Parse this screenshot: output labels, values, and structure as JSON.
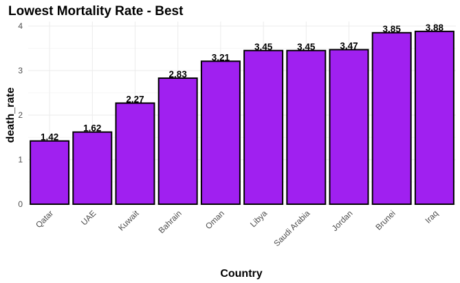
{
  "chart_data": {
    "type": "bar",
    "title": "Lowest Mortality Rate - Best",
    "xlabel": "Country",
    "ylabel": "death_rate",
    "categories": [
      "Qatar",
      "UAE",
      "Kuwait",
      "Bahrain",
      "Oman",
      "Libya",
      "Saudi Arabia",
      "Jordan",
      "Brunei",
      "Iraq"
    ],
    "values": [
      1.42,
      1.62,
      2.27,
      2.83,
      3.21,
      3.45,
      3.45,
      3.47,
      3.85,
      3.88
    ],
    "data_labels": [
      "1.42",
      "1.62",
      "2.27",
      "2.83",
      "3.21",
      "3.45",
      "3.45",
      "3.47",
      "3.85",
      "3.88"
    ],
    "yticks": [
      0,
      1,
      2,
      3,
      4
    ],
    "ylim": [
      0,
      4.1
    ],
    "grid": true,
    "bar_color": "#a020f0",
    "bar_edge_color": "#000000"
  }
}
